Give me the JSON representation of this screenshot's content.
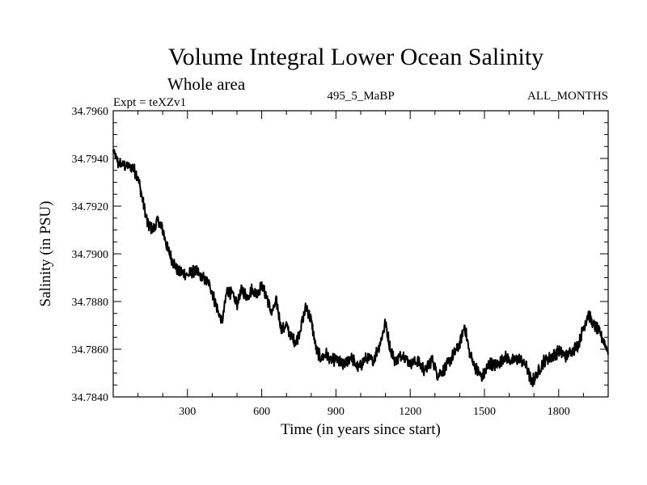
{
  "chart_data": {
    "type": "line",
    "title": "Volume Integral Lower Ocean Salinity",
    "subtitle": "Whole area",
    "expt_label": "Expt = teXZv1",
    "run_label": "495_5_MaBP",
    "months_label": "ALL_MONTHS",
    "xlabel": "Time (in years since start)",
    "ylabel": "Salinity (in PSU)",
    "xlim": [
      0,
      2000
    ],
    "ylim": [
      34.784,
      34.796
    ],
    "x_ticks": [
      300,
      600,
      900,
      1200,
      1500,
      1800
    ],
    "x_tick_labels": [
      "300",
      "600",
      "900",
      "1200",
      "1500",
      "1800"
    ],
    "y_ticks": [
      34.784,
      34.786,
      34.788,
      34.79,
      34.792,
      34.794,
      34.796
    ],
    "y_tick_labels": [
      "34.7840",
      "34.7860",
      "34.7880",
      "34.7900",
      "34.7920",
      "34.7940",
      "34.7960"
    ],
    "line_color": "#000000",
    "series": [
      {
        "name": "salinity",
        "x": [
          0,
          20,
          50,
          80,
          100,
          120,
          140,
          160,
          180,
          200,
          220,
          240,
          260,
          280,
          300,
          330,
          360,
          390,
          420,
          440,
          460,
          480,
          500,
          520,
          540,
          560,
          580,
          600,
          620,
          640,
          660,
          680,
          700,
          720,
          740,
          760,
          780,
          800,
          820,
          840,
          860,
          880,
          900,
          930,
          960,
          990,
          1020,
          1050,
          1080,
          1100,
          1120,
          1140,
          1170,
          1200,
          1230,
          1260,
          1290,
          1310,
          1340,
          1370,
          1400,
          1420,
          1440,
          1470,
          1490,
          1520,
          1550,
          1580,
          1610,
          1640,
          1670,
          1690,
          1710,
          1740,
          1770,
          1800,
          1830,
          1860,
          1880,
          1900,
          1920,
          1940,
          1960,
          1980,
          2000
        ],
        "values": [
          34.7943,
          34.7938,
          34.7937,
          34.7936,
          34.7932,
          34.7922,
          34.7912,
          34.791,
          34.7914,
          34.791,
          34.7902,
          34.7897,
          34.7893,
          34.7892,
          34.7891,
          34.7893,
          34.789,
          34.7887,
          34.7877,
          34.7871,
          34.7885,
          34.7883,
          34.7879,
          34.7885,
          34.7882,
          34.7885,
          34.7883,
          34.7887,
          34.7882,
          34.7875,
          34.788,
          34.7868,
          34.787,
          34.7865,
          34.7863,
          34.787,
          34.7878,
          34.7872,
          34.786,
          34.7856,
          34.7858,
          34.7855,
          34.7856,
          34.7853,
          34.7857,
          34.7852,
          34.7856,
          34.7855,
          34.7863,
          34.7871,
          34.786,
          34.7855,
          34.7858,
          34.7854,
          34.7855,
          34.7851,
          34.7856,
          34.7849,
          34.7852,
          34.7857,
          34.7862,
          34.787,
          34.7858,
          34.7851,
          34.7848,
          34.7854,
          34.7853,
          34.7857,
          34.7855,
          34.7856,
          34.7853,
          34.7846,
          34.7849,
          34.7855,
          34.7857,
          34.7859,
          34.7857,
          34.786,
          34.7862,
          34.7869,
          34.7875,
          34.787,
          34.7868,
          34.7864,
          34.7859
        ]
      }
    ]
  }
}
